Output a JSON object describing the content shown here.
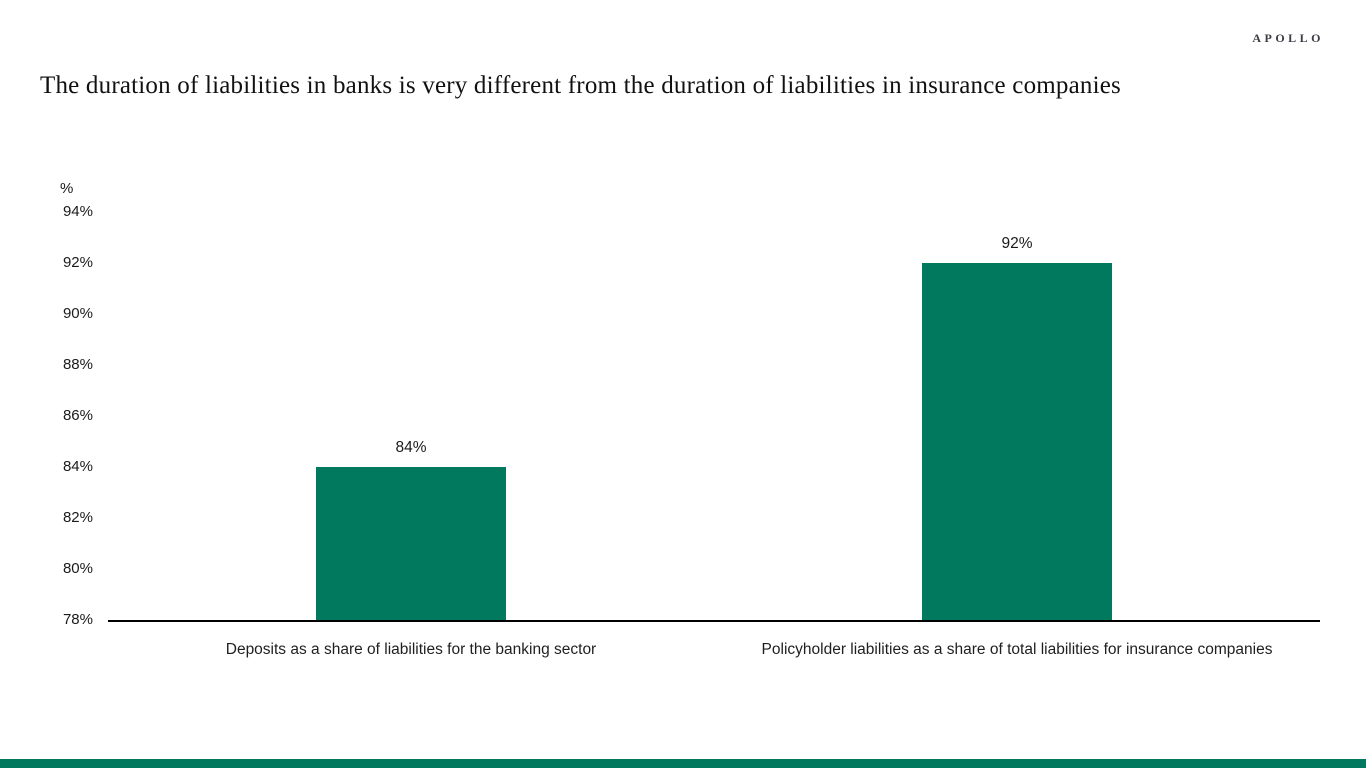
{
  "brand": {
    "logo_text": "APOLLO"
  },
  "title": "The duration of liabilities in banks is very different from the duration of liabilities in insurance companies",
  "chart_data": {
    "type": "bar",
    "title": "The duration of liabilities in banks is very different from the duration of liabilities in insurance companies",
    "unit_label": "%",
    "categories": [
      "Deposits as a share of liabilities for the banking sector",
      "Policyholder liabilities as a share of total liabilities for insurance companies"
    ],
    "values": [
      84,
      92
    ],
    "value_labels": [
      "84%",
      "92%"
    ],
    "ylabel": "%",
    "xlabel": "",
    "ylim": [
      78,
      94
    ],
    "y_axis": {
      "min": 78,
      "max": 94,
      "step": 2,
      "tick_suffix": "%",
      "tick_labels": [
        "78%",
        "80%",
        "82%",
        "84%",
        "86%",
        "88%",
        "90%",
        "92%",
        "94%"
      ]
    },
    "grid": false,
    "legend": false,
    "bar_color": "#00795F",
    "axis_color": "#000000"
  },
  "footer": {
    "accent_bar_color": "#00795F"
  }
}
